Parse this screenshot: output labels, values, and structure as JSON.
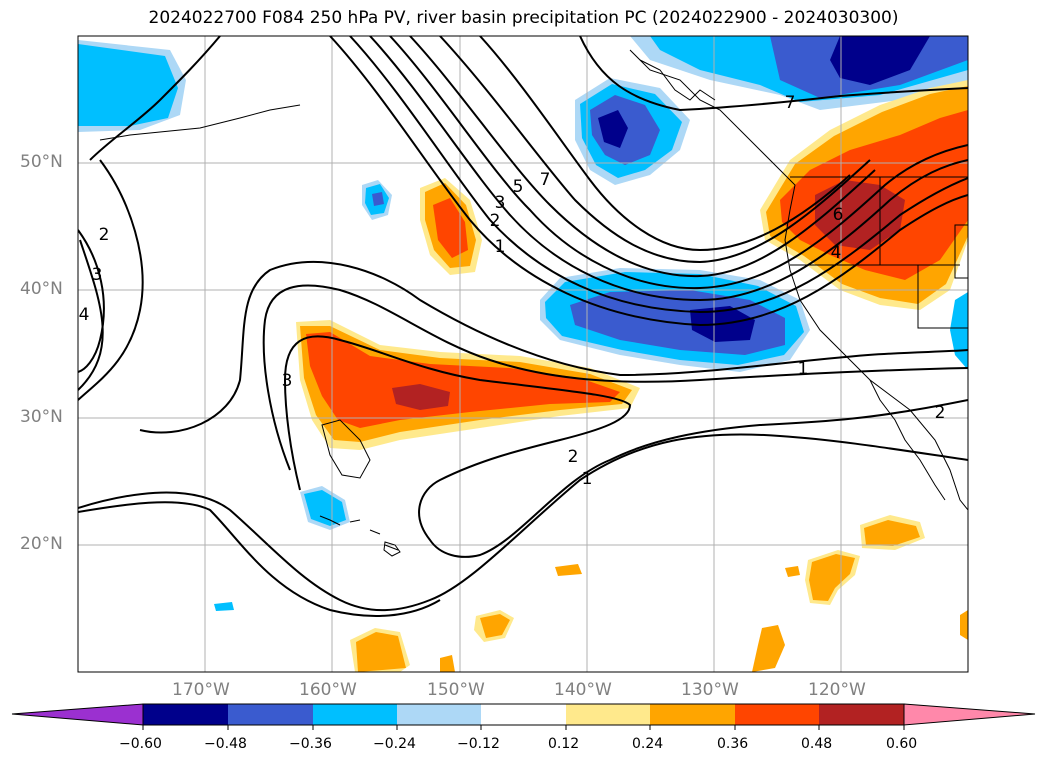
{
  "title": "2024022700 F084 250 hPa PV, river basin precipitation PC (2024022900 - 2024030300)",
  "lat_labels": [
    "50°N",
    "40°N",
    "30°N",
    "20°N"
  ],
  "lon_labels": [
    "170°W",
    "160°W",
    "150°W",
    "140°W",
    "130°W",
    "120°W"
  ],
  "contour_labels": [
    "7",
    "5",
    "3",
    "2",
    "1",
    "2",
    "3",
    "4",
    "3",
    "6",
    "4",
    "7",
    "1",
    "2",
    "1",
    "2"
  ],
  "colorbar": {
    "ticks": [
      "−0.60",
      "−0.48",
      "−0.36",
      "−0.24",
      "−0.12",
      "0.12",
      "0.24",
      "0.36",
      "0.48",
      "0.60"
    ],
    "colors": [
      "#9b30d0",
      "#00008b",
      "#3a5bcf",
      "#00bfff",
      "#add8f6",
      "#ffffff",
      "#ffe98c",
      "#ffa500",
      "#ff4500",
      "#b22222",
      "#ff88aa"
    ]
  },
  "shading_colors": {
    "strong_negative": "#00008b",
    "negative": "#3a5bcf",
    "moderate_negative": "#00bfff",
    "weak_negative": "#add8f6",
    "weak_positive": "#ffe98c",
    "moderate_positive": "#ffa500",
    "positive": "#ff4500",
    "strong_positive": "#b22222"
  }
}
